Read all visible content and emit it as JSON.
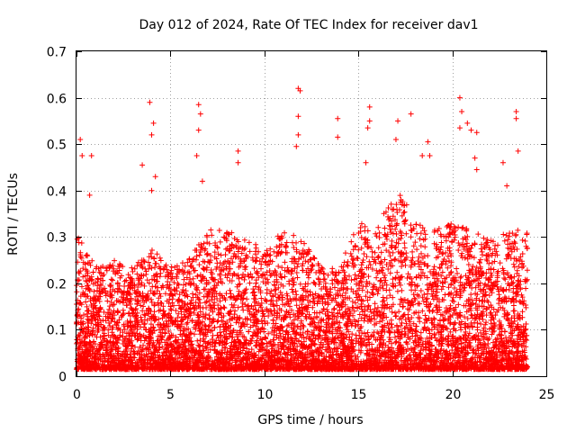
{
  "chart_data": {
    "type": "scatter",
    "title": "Day 012 of 2024, Rate Of TEC Index for receiver dav1",
    "xlabel": "GPS time / hours",
    "ylabel": "ROTI / TECUs",
    "xlim": [
      0,
      25
    ],
    "ylim": [
      0,
      0.7
    ],
    "xticks": [
      0,
      5,
      10,
      15,
      20,
      25
    ],
    "xtick_labels": [
      "0",
      "5",
      "10",
      "15",
      "20",
      "25"
    ],
    "yticks": [
      0,
      0.1,
      0.2,
      0.3,
      0.4,
      0.5,
      0.6,
      0.7
    ],
    "ytick_labels": [
      "0",
      "0.1",
      "0.2",
      "0.3",
      "0.4",
      "0.5",
      "0.6",
      "0.7"
    ],
    "grid": true,
    "marker": "+",
    "series": [
      {
        "name": "ROTI",
        "color": "#ff0000",
        "x_range": [
          0,
          24
        ],
        "typical_max_by_hour": [
          0.3,
          0.22,
          0.24,
          0.22,
          0.26,
          0.22,
          0.24,
          0.3,
          0.3,
          0.28,
          0.26,
          0.3,
          0.28,
          0.22,
          0.22,
          0.32,
          0.3,
          0.4,
          0.32,
          0.3,
          0.32,
          0.3,
          0.28,
          0.3,
          0.3
        ],
        "spikes": [
          {
            "x": 0.2,
            "y": 0.51
          },
          {
            "x": 0.3,
            "y": 0.475
          },
          {
            "x": 0.8,
            "y": 0.475
          },
          {
            "x": 0.7,
            "y": 0.39
          },
          {
            "x": 3.9,
            "y": 0.59
          },
          {
            "x": 4.1,
            "y": 0.545
          },
          {
            "x": 4.0,
            "y": 0.52
          },
          {
            "x": 3.5,
            "y": 0.455
          },
          {
            "x": 4.2,
            "y": 0.43
          },
          {
            "x": 4.0,
            "y": 0.4
          },
          {
            "x": 6.5,
            "y": 0.585
          },
          {
            "x": 6.6,
            "y": 0.565
          },
          {
            "x": 6.5,
            "y": 0.53
          },
          {
            "x": 6.4,
            "y": 0.475
          },
          {
            "x": 6.7,
            "y": 0.42
          },
          {
            "x": 8.6,
            "y": 0.485
          },
          {
            "x": 8.6,
            "y": 0.46
          },
          {
            "x": 11.8,
            "y": 0.62
          },
          {
            "x": 11.9,
            "y": 0.615
          },
          {
            "x": 11.8,
            "y": 0.56
          },
          {
            "x": 11.8,
            "y": 0.52
          },
          {
            "x": 11.7,
            "y": 0.495
          },
          {
            "x": 13.9,
            "y": 0.555
          },
          {
            "x": 13.9,
            "y": 0.515
          },
          {
            "x": 15.6,
            "y": 0.58
          },
          {
            "x": 15.6,
            "y": 0.55
          },
          {
            "x": 15.5,
            "y": 0.535
          },
          {
            "x": 15.4,
            "y": 0.46
          },
          {
            "x": 17.1,
            "y": 0.55
          },
          {
            "x": 17.0,
            "y": 0.51
          },
          {
            "x": 17.8,
            "y": 0.565
          },
          {
            "x": 18.7,
            "y": 0.505
          },
          {
            "x": 18.4,
            "y": 0.475
          },
          {
            "x": 18.8,
            "y": 0.475
          },
          {
            "x": 20.4,
            "y": 0.6
          },
          {
            "x": 20.5,
            "y": 0.57
          },
          {
            "x": 20.4,
            "y": 0.535
          },
          {
            "x": 20.8,
            "y": 0.545
          },
          {
            "x": 21.0,
            "y": 0.53
          },
          {
            "x": 21.3,
            "y": 0.525
          },
          {
            "x": 21.2,
            "y": 0.47
          },
          {
            "x": 21.3,
            "y": 0.445
          },
          {
            "x": 22.7,
            "y": 0.46
          },
          {
            "x": 22.9,
            "y": 0.41
          },
          {
            "x": 23.4,
            "y": 0.57
          },
          {
            "x": 23.4,
            "y": 0.555
          },
          {
            "x": 23.5,
            "y": 0.485
          }
        ]
      }
    ]
  }
}
